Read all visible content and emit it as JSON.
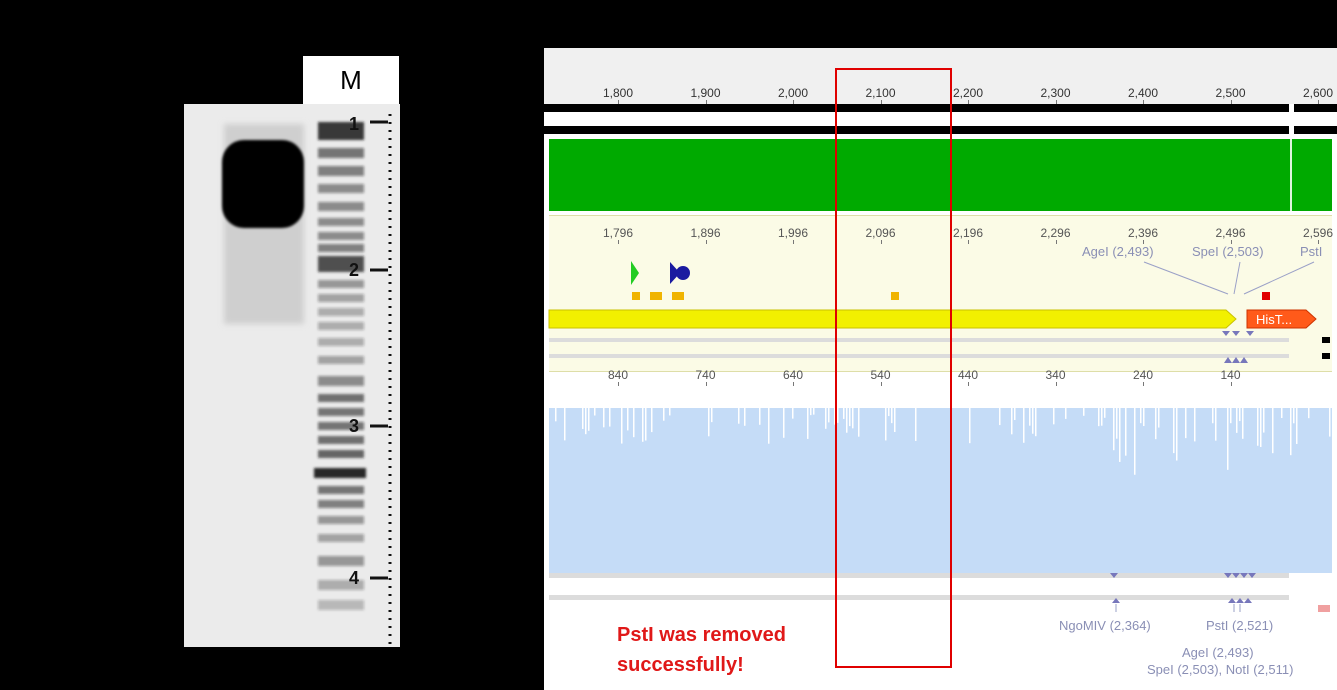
{
  "gel": {
    "marker_label": "M",
    "ladder_marks": [
      "1",
      "2",
      "3",
      "4"
    ]
  },
  "viewer": {
    "top_ruler": [
      "1,800",
      "1,900",
      "2,000",
      "2,100",
      "2,200",
      "2,300",
      "2,400",
      "2,500",
      "2,600"
    ],
    "mid_ruler": [
      "1,796",
      "1,896",
      "1,996",
      "2,096",
      "2,196",
      "2,296",
      "2,396",
      "2,496",
      "2,596"
    ],
    "rev_ruler": [
      "840",
      "740",
      "640",
      "540",
      "440",
      "340",
      "240",
      "140"
    ],
    "top_enzymes": [
      "AgeI (2,493)",
      "SpeI (2,503)",
      "PstI"
    ],
    "feature_label": "HisT...",
    "bottom_enzymes": {
      "ngomiv": "NgoMIV (2,364)",
      "psti": "PstI (2,521)",
      "agei": "AgeI (2,493)",
      "spei_noti": "SpeI (2,503), NotI (2,511)"
    }
  },
  "note": {
    "line1": "PstI was removed",
    "line2": "successfully!"
  },
  "colors": {
    "green_track": "#00aa00",
    "yellow_arrow": "#f2f000",
    "feature_orange": "#ff5a1a",
    "coverage_blue": "#c5dcf7",
    "highlight_red": "#e00000",
    "note_red": "#e01818"
  }
}
